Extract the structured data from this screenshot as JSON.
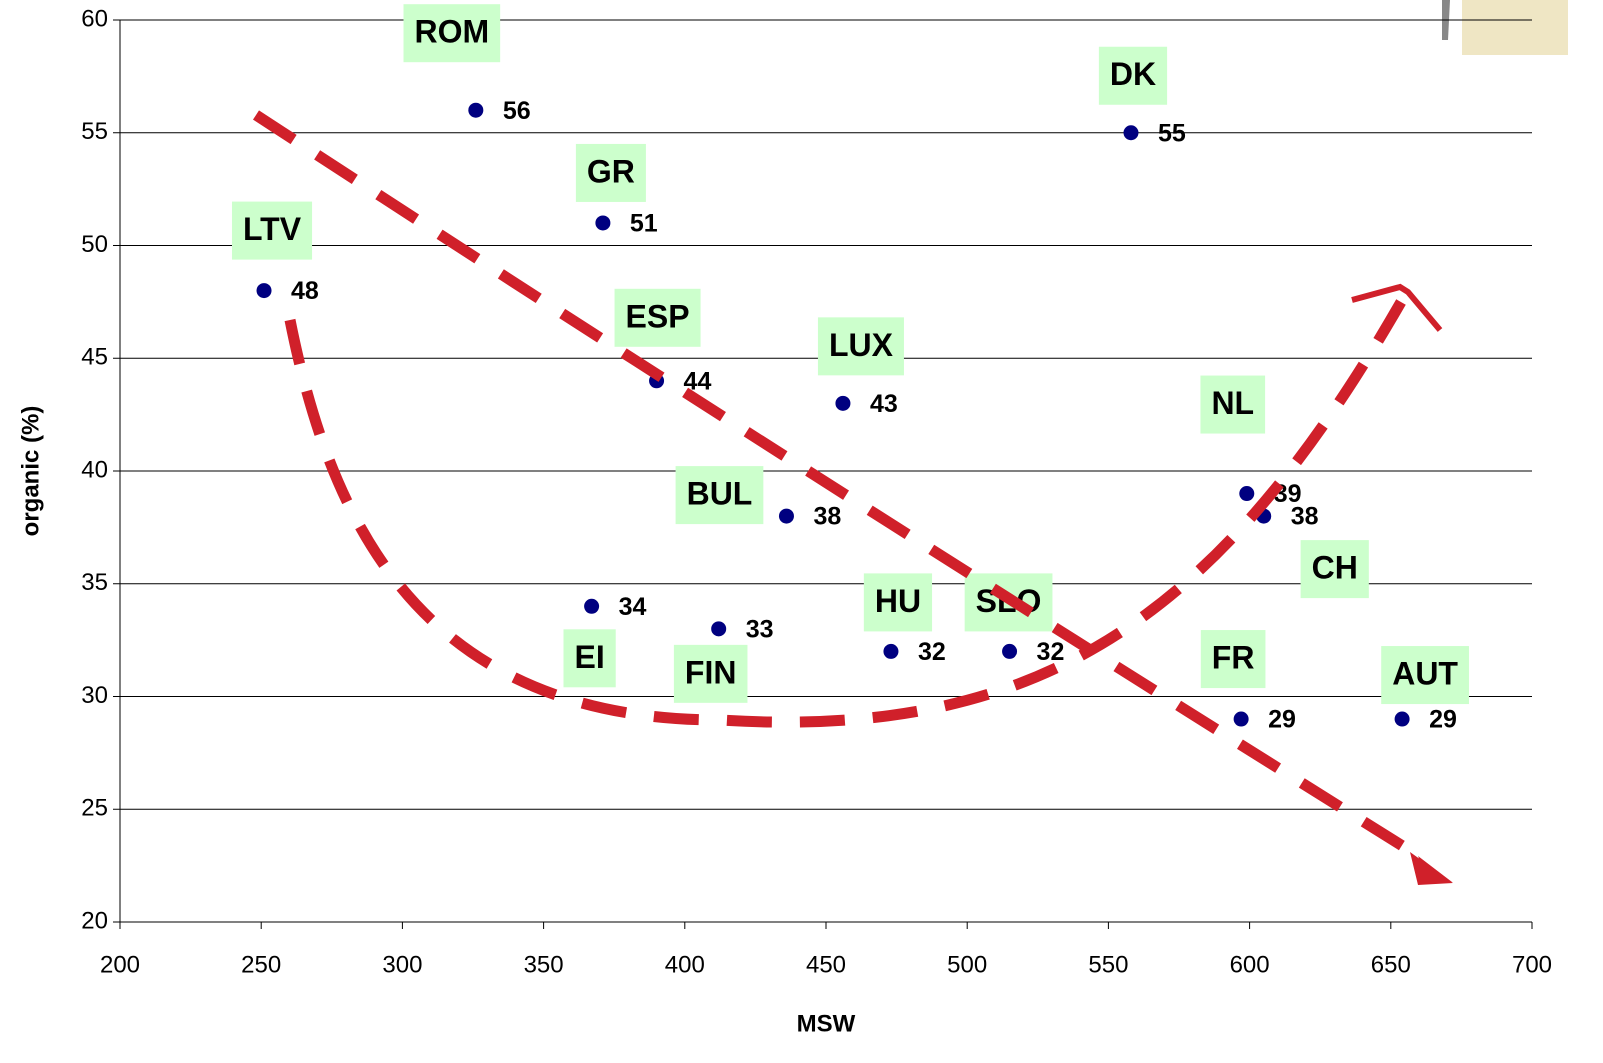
{
  "chart_data": {
    "type": "scatter",
    "x_label": "MSW",
    "y_label": "organic (%)",
    "xlim": [
      200,
      700
    ],
    "xticks": [
      200,
      250,
      300,
      350,
      400,
      450,
      500,
      550,
      600,
      650,
      700
    ],
    "ylim": [
      20,
      60
    ],
    "yticks": [
      20,
      25,
      30,
      35,
      40,
      45,
      50,
      55,
      60
    ],
    "grid": true,
    "series": [
      {
        "color": "#000080",
        "point_labels": [
          "LTV",
          "ROM",
          "GR",
          "ESP",
          "LUX",
          "BUL",
          "EI",
          "FIN",
          "HU",
          "SLO",
          "DK",
          "NL",
          "CH",
          "FR",
          "AUT"
        ],
        "x": [
          251,
          326,
          371,
          390,
          456,
          436,
          367,
          412,
          473,
          515,
          558,
          599,
          605,
          597,
          654
        ],
        "values": [
          48,
          56,
          51,
          44,
          43,
          38,
          34,
          33,
          32,
          32,
          55,
          39,
          38,
          29,
          29
        ]
      }
    ]
  }
}
